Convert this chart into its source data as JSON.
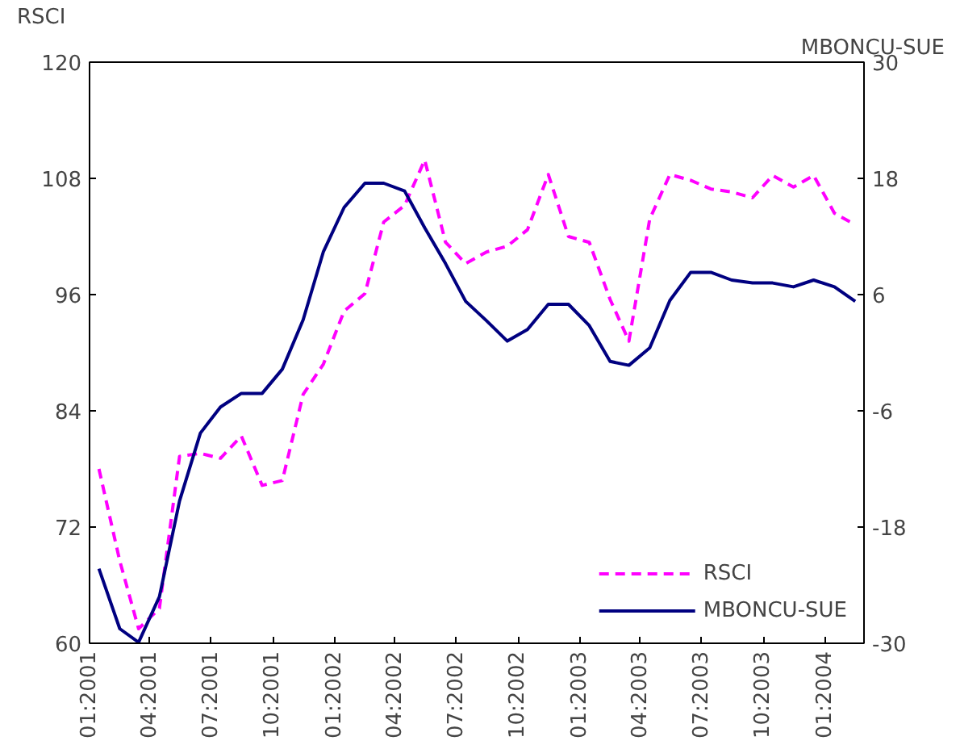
{
  "chart_data": {
    "type": "line",
    "ylabel": "RSCI",
    "y2label": "MBONCU-SUE",
    "x": [
      "2001-01-15",
      "2001-02-15",
      "2001-03-15",
      "2001-04-15",
      "2001-05-15",
      "2001-06-15",
      "2001-07-15",
      "2001-08-15",
      "2001-09-15",
      "2001-10-15",
      "2001-11-15",
      "2001-12-15",
      "2002-01-15",
      "2002-02-15",
      "2002-03-15",
      "2002-04-15",
      "2002-05-15",
      "2002-06-15",
      "2002-07-15",
      "2002-08-15",
      "2002-09-15",
      "2002-10-15",
      "2002-11-15",
      "2002-12-15",
      "2003-01-15",
      "2003-02-15",
      "2003-03-15",
      "2003-04-15",
      "2003-05-15",
      "2003-06-15",
      "2003-07-15",
      "2003-08-15",
      "2003-09-15",
      "2003-10-15",
      "2003-11-15",
      "2003-12-15",
      "2004-01-15",
      "2004-02-15"
    ],
    "series": [
      {
        "name": "RSCI",
        "color": "#ff00ff",
        "line_style": "dashed",
        "values": [
          78.0,
          68.5,
          61.5,
          63.6,
          79.3,
          79.6,
          79.1,
          81.4,
          76.3,
          76.8,
          85.7,
          88.8,
          94.3,
          96.1,
          103.5,
          105.2,
          109.9,
          101.4,
          99.2,
          100.4,
          101.0,
          102.7,
          108.4,
          102.0,
          101.4,
          95.5,
          91.2,
          103.8,
          108.4,
          107.8,
          106.9,
          106.6,
          106.0,
          108.3,
          107.1,
          108.3,
          104.4,
          103.2
        ]
      },
      {
        "name": "MBONCU-SUE",
        "color": "#000080",
        "line_style": "solid",
        "axis": "y2",
        "values": [
          -22.3,
          -28.5,
          -29.9,
          -25.2,
          -15.3,
          -8.3,
          -5.6,
          -4.2,
          -4.2,
          -1.7,
          3.4,
          10.4,
          15.0,
          17.5,
          17.5,
          16.7,
          12.9,
          9.2,
          5.3,
          3.3,
          1.2,
          2.4,
          5.0,
          5.0,
          2.8,
          -0.9,
          -1.3,
          0.5,
          5.4,
          8.3,
          8.3,
          7.5,
          7.2,
          7.2,
          6.8,
          7.5,
          6.8,
          5.3
        ]
      }
    ],
    "xlim": [
      "2001-01-01",
      "2004-02-28"
    ],
    "xticks": [
      {
        "value": "2001-01-01",
        "label": "01:2001"
      },
      {
        "value": "2001-04-01",
        "label": "04:2001"
      },
      {
        "value": "2001-07-01",
        "label": "07:2001"
      },
      {
        "value": "2001-10-01",
        "label": "10:2001"
      },
      {
        "value": "2002-01-01",
        "label": "01:2002"
      },
      {
        "value": "2002-04-01",
        "label": "04:2002"
      },
      {
        "value": "2002-07-01",
        "label": "07:2002"
      },
      {
        "value": "2002-10-01",
        "label": "10:2002"
      },
      {
        "value": "2003-01-01",
        "label": "01:2003"
      },
      {
        "value": "2003-04-01",
        "label": "04:2003"
      },
      {
        "value": "2003-07-01",
        "label": "07:2003"
      },
      {
        "value": "2003-10-01",
        "label": "10:2003"
      },
      {
        "value": "2004-01-01",
        "label": "01:2004"
      }
    ],
    "ylim": [
      60,
      120
    ],
    "yticks": [
      60,
      72,
      84,
      96,
      108,
      120
    ],
    "y2lim": [
      -30,
      30
    ],
    "y2ticks": [
      -30,
      -18,
      -6,
      6,
      18,
      30
    ],
    "grid": false,
    "legend": "bottom right",
    "marker": "none"
  }
}
